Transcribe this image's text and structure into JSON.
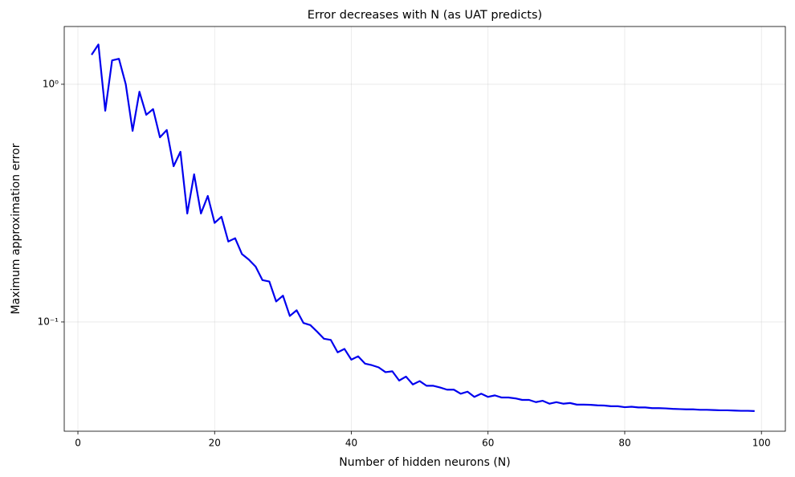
{
  "chart_data": {
    "type": "line",
    "title": "Error decreases with N (as UAT predicts)",
    "x_label": "Number of hidden neurons (N)",
    "y_label": "Maximum approximation error",
    "x": [
      2,
      3,
      4,
      5,
      6,
      7,
      8,
      9,
      10,
      11,
      12,
      13,
      14,
      15,
      16,
      17,
      18,
      19,
      20,
      21,
      22,
      23,
      24,
      25,
      26,
      27,
      28,
      29,
      30,
      31,
      32,
      33,
      34,
      35,
      36,
      37,
      38,
      39,
      40,
      41,
      42,
      43,
      44,
      45,
      46,
      47,
      48,
      49,
      50,
      51,
      52,
      53,
      54,
      55,
      56,
      57,
      58,
      59,
      60,
      61,
      62,
      63,
      64,
      65,
      66,
      67,
      68,
      69,
      70,
      71,
      72,
      73,
      74,
      75,
      76,
      77,
      78,
      79,
      80,
      81,
      82,
      83,
      84,
      85,
      86,
      87,
      88,
      89,
      90,
      91,
      92,
      93,
      94,
      95,
      96,
      97,
      98,
      99
    ],
    "values": [
      1.33,
      1.47,
      0.774,
      1.26,
      1.28,
      1.0,
      0.637,
      0.93,
      0.744,
      0.786,
      0.598,
      0.642,
      0.452,
      0.52,
      0.286,
      0.418,
      0.286,
      0.339,
      0.261,
      0.277,
      0.218,
      0.225,
      0.193,
      0.183,
      0.171,
      0.15,
      0.148,
      0.122,
      0.129,
      0.106,
      0.112,
      0.099,
      0.097,
      0.091,
      0.085,
      0.084,
      0.0745,
      0.077,
      0.0694,
      0.0717,
      0.0668,
      0.0658,
      0.0644,
      0.0615,
      0.062,
      0.0567,
      0.0589,
      0.0546,
      0.0564,
      0.0539,
      0.0539,
      0.053,
      0.0519,
      0.0519,
      0.0499,
      0.0509,
      0.0484,
      0.0499,
      0.0484,
      0.0491,
      0.0481,
      0.0481,
      0.0477,
      0.047,
      0.047,
      0.046,
      0.0466,
      0.0453,
      0.046,
      0.0453,
      0.0456,
      0.0449,
      0.0449,
      0.0448,
      0.0446,
      0.0445,
      0.0442,
      0.0442,
      0.0438,
      0.044,
      0.0437,
      0.0437,
      0.0434,
      0.0434,
      0.0433,
      0.0431,
      0.043,
      0.0429,
      0.0429,
      0.0427,
      0.0427,
      0.0426,
      0.0425,
      0.0425,
      0.0424,
      0.0423,
      0.0423,
      0.0422
    ],
    "color": "#0000ee",
    "xlim": [
      -2,
      103.5
    ],
    "xticks": [
      0,
      20,
      40,
      60,
      80,
      100
    ],
    "ylim": [
      0.0347,
      1.75
    ],
    "y_scale": "log",
    "yticks": [
      {
        "value": 0.1,
        "label": "10⁻¹"
      },
      {
        "value": 1,
        "label": "10⁰"
      }
    ],
    "grid": true
  }
}
